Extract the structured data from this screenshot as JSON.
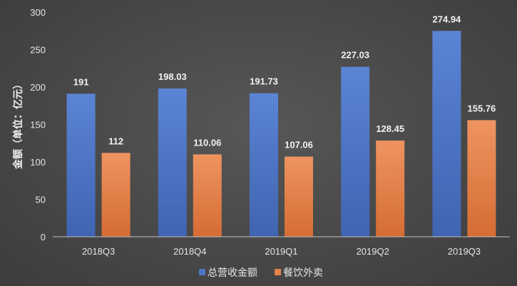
{
  "chart_data": {
    "type": "bar",
    "ylabel": "金额（单位：亿元）",
    "xlabel": "",
    "ylim": [
      0,
      300
    ],
    "yticks": [
      "0",
      "50",
      "100",
      "150",
      "200",
      "250",
      "300"
    ],
    "categories": [
      "2018Q3",
      "2018Q4",
      "2019Q1",
      "2019Q2",
      "2019Q3"
    ],
    "series": [
      {
        "name": "总营收金额",
        "values": [
          191,
          198.03,
          191.73,
          227.03,
          274.94
        ],
        "labels": [
          "191",
          "198.03",
          "191.73",
          "227.03",
          "274.94"
        ],
        "color": "#4f76c6"
      },
      {
        "name": "餐饮外卖",
        "values": [
          112,
          110.06,
          107.06,
          128.45,
          155.76
        ],
        "labels": [
          "112",
          "110.06",
          "107.06",
          "128.45",
          "155.76"
        ],
        "color": "#e5814a"
      }
    ],
    "legend": "bottom",
    "grid": false
  }
}
